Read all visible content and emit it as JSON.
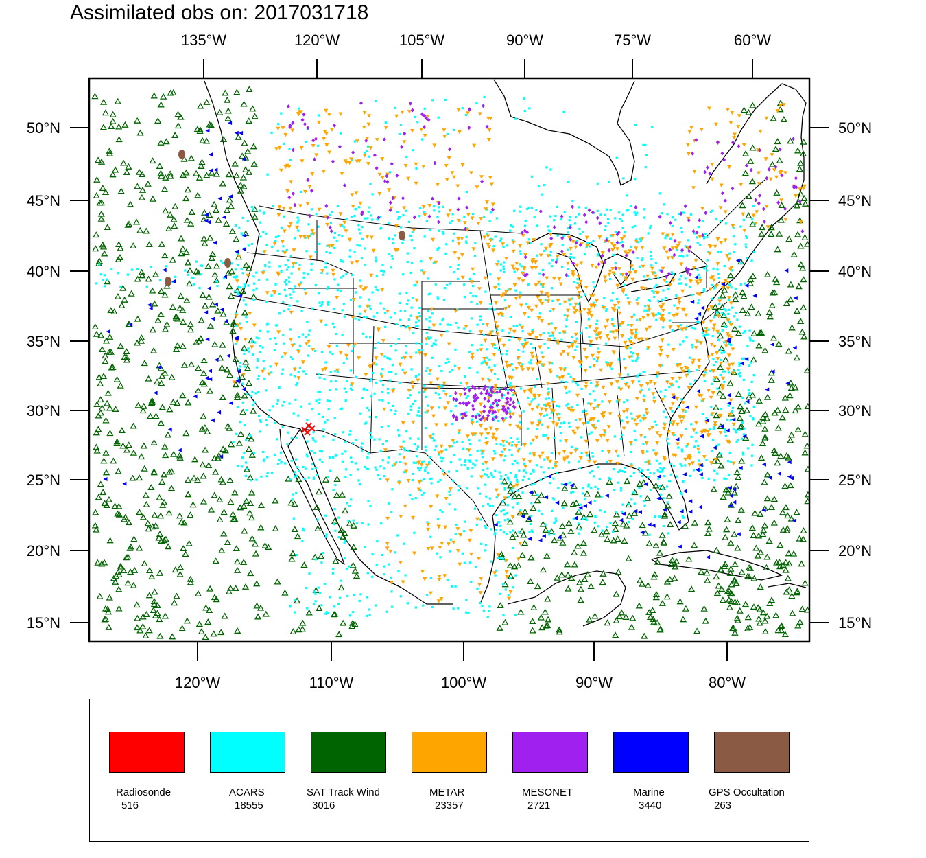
{
  "title": "Assimilated obs on: 2017031718",
  "top_axis_labels": [
    "135°W",
    "120°W",
    "105°W",
    "90°W",
    "75°W",
    "60°W"
  ],
  "bottom_axis_labels": [
    "120°W",
    "110°W",
    "100°W",
    "90°W",
    "80°W"
  ],
  "latitude_labels": [
    "50°N",
    "45°N",
    "40°N",
    "35°N",
    "30°N",
    "25°N",
    "20°N",
    "15°N"
  ],
  "colors": {
    "radiosonde": "#ff0000",
    "acars": "#00ffff",
    "sat_track_wind": "#006400",
    "metar": "#ffa500",
    "mesonet": "#a020f0",
    "marine": "#0000ff",
    "gps_occultation": "#8b5a44"
  },
  "legend": [
    {
      "name": "Radiosonde",
      "count": "516",
      "color": "#ff0000"
    },
    {
      "name": "ACARS",
      "count": "18555",
      "color": "#00ffff"
    },
    {
      "name": "SAT Track Wind",
      "count": "3016",
      "color": "#006400"
    },
    {
      "name": "METAR",
      "count": "23357",
      "color": "#ffa500"
    },
    {
      "name": "MESONET",
      "count": "2721",
      "color": "#a020f0"
    },
    {
      "name": "Marine",
      "count": "3440",
      "color": "#0000ff"
    },
    {
      "name": "GPS Occultation",
      "count": "263",
      "color": "#8b5a44"
    }
  ]
}
